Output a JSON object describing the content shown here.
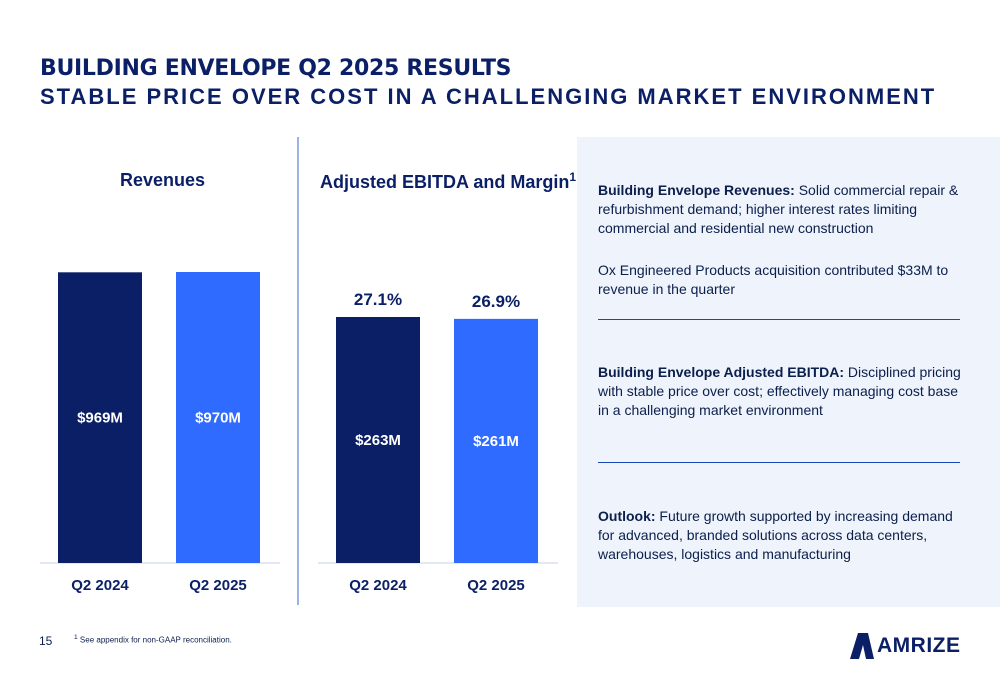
{
  "header": {
    "title": "BUILDING ENVELOPE Q2 2025 RESULTS",
    "subtitle": "STABLE PRICE OVER COST IN A CHALLENGING MARKET ENVIRONMENT"
  },
  "chart_data": [
    {
      "type": "bar",
      "title": "Revenues",
      "categories": [
        "Q2 2024",
        "Q2 2025"
      ],
      "values": [
        969,
        970
      ],
      "data_labels": [
        "$969M",
        "$970M"
      ],
      "colors": [
        "#0a1f66",
        "#2f6bff"
      ],
      "grid": false
    },
    {
      "type": "bar",
      "title": "Adjusted EBITDA and Margin",
      "title_superscript": "1",
      "categories": [
        "Q2 2024",
        "Q2 2025"
      ],
      "values": [
        263,
        261
      ],
      "data_labels": [
        "$263M",
        "$261M"
      ],
      "margins": [
        "27.1%",
        "26.9%"
      ],
      "colors": [
        "#0a1f66",
        "#2f6bff"
      ],
      "grid": false
    }
  ],
  "panel": {
    "revenues_head": "Building Envelope Revenues:",
    "revenues_text": " Solid commercial repair & refurbishment demand; higher interest rates limiting commercial and residential new construction",
    "acquisition_text": "Ox Engineered Products acquisition contributed $33M to revenue in the quarter",
    "ebitda_head": "Building Envelope Adjusted EBITDA:",
    "ebitda_text": " Disciplined pricing with stable price over cost; effectively managing cost base in a challenging market environment",
    "outlook_head": "Outlook:",
    "outlook_text": " Future growth supported by increasing demand for advanced, branded solutions across data centers, warehouses, logistics and manufacturing"
  },
  "footer": {
    "page_number": "15",
    "footnote_mark": "1",
    "footnote_text": " See appendix for non-GAAP reconciliation.",
    "logo_text": "AMRIZE"
  },
  "colors": {
    "navy": "#0a1f66",
    "blue": "#2f6bff",
    "panel_bg": "#eef3fc"
  }
}
